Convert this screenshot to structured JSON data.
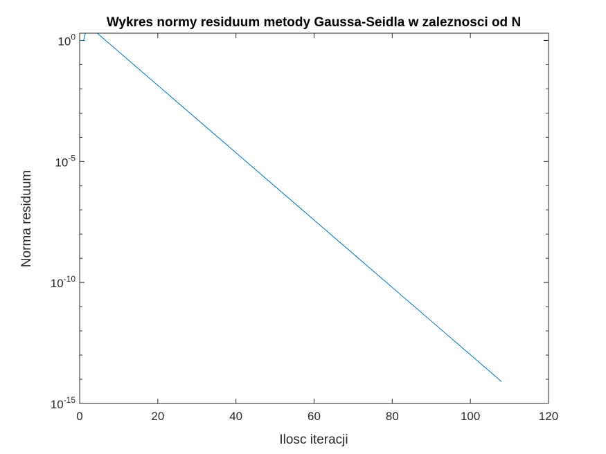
{
  "chart_data": {
    "type": "line",
    "title": "Wykres normy residuum metody Gaussa-Seidla w zaleznosci od N",
    "xlabel": "Ilosc iteracji",
    "ylabel": "Norma residuum",
    "xlim": [
      0,
      120
    ],
    "ylim_log10": [
      -15,
      0.3
    ],
    "yscale": "log",
    "grid": false,
    "x_ticks": [
      0,
      20,
      40,
      60,
      80,
      100,
      120
    ],
    "x_tick_labels": [
      "0",
      "20",
      "40",
      "60",
      "80",
      "100",
      "120"
    ],
    "y_ticks_log10": [
      0,
      -5,
      -10,
      -15
    ],
    "y_tick_labels": [
      {
        "base": "10",
        "exp": "0"
      },
      {
        "base": "10",
        "exp": "-5"
      },
      {
        "base": "10",
        "exp": "-10"
      },
      {
        "base": "10",
        "exp": "-15"
      }
    ],
    "series": [
      {
        "color": "#0072bd",
        "points": [
          {
            "x": 0,
            "log10y": 0
          },
          {
            "x": 1,
            "log10y": 0
          },
          {
            "x": 2,
            "log10y": 0.65
          },
          {
            "x": 108,
            "log10y": -14.1
          }
        ]
      }
    ]
  }
}
